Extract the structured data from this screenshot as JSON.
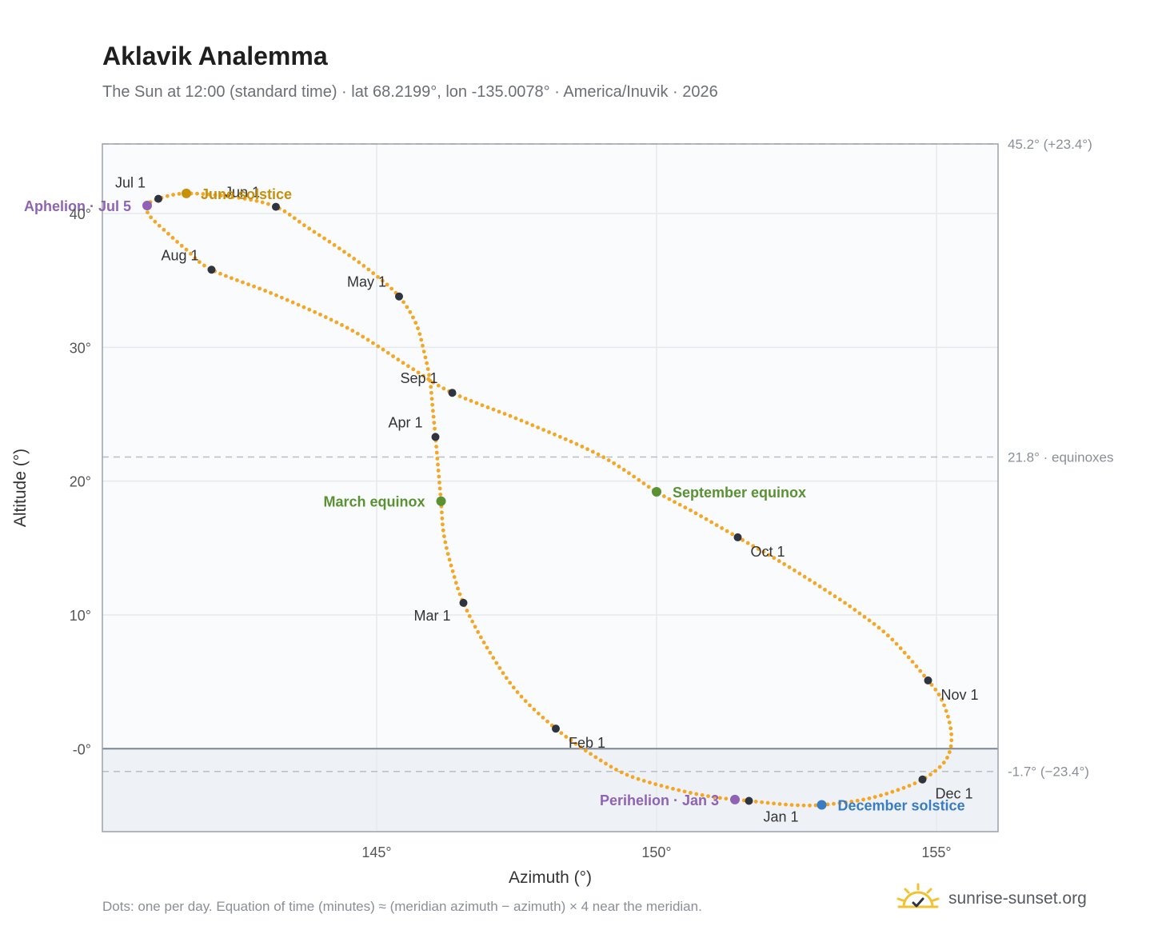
{
  "header": {
    "title": "Aklavik Analemma",
    "subtitle": "The Sun at 12:00 (standard time) · lat 68.2199°, lon -135.0078° · America/Inuvik · 2026"
  },
  "footer": {
    "note": "Dots: one per day. Equation of time (minutes) ≈ (meridian azimuth − azimuth) × 4 near the meridian.",
    "brand": "sunrise-sunset.org"
  },
  "colors": {
    "path": "#f5a623",
    "month_dot": "#2f3540",
    "solstice_june": "#c8900a",
    "solstice_december": "#3a7cc4",
    "equinox": "#5a9132",
    "apsis": "#8e63b5"
  },
  "chart_data": {
    "type": "scatter",
    "title": "Aklavik Analemma",
    "xlabel": "Azimuth (°)",
    "ylabel": "Altitude (°)",
    "xlim": [
      140.1,
      156.1
    ],
    "ylim": [
      -6.2,
      45.2
    ],
    "x_ticks": [
      145,
      150,
      155
    ],
    "x_tick_labels": [
      "145°",
      "150°",
      "155°"
    ],
    "y_ticks": [
      0,
      10,
      20,
      30,
      40
    ],
    "y_tick_labels": [
      "-0°",
      "10°",
      "20°",
      "30°",
      "40°"
    ],
    "grid": true,
    "horizon_altitude": 0,
    "reference_lines": [
      {
        "y": 45.2,
        "label": "45.2° (+23.4°)"
      },
      {
        "y": 21.8,
        "label": "21.8° · equinoxes"
      },
      {
        "y": -1.7,
        "label": "-1.7° (−23.4°)"
      }
    ],
    "month_markers": [
      {
        "label": "Jan 1",
        "x": 151.65,
        "y": -3.9
      },
      {
        "label": "Feb 1",
        "x": 148.2,
        "y": 1.5
      },
      {
        "label": "Mar 1",
        "x": 146.55,
        "y": 10.9
      },
      {
        "label": "Apr 1",
        "x": 146.05,
        "y": 23.3
      },
      {
        "label": "May 1",
        "x": 145.4,
        "y": 33.8
      },
      {
        "label": "Jun 1",
        "x": 143.2,
        "y": 40.5
      },
      {
        "label": "Jul 1",
        "x": 141.1,
        "y": 41.1
      },
      {
        "label": "Aug 1",
        "x": 142.05,
        "y": 35.8
      },
      {
        "label": "Sep 1",
        "x": 146.35,
        "y": 26.6
      },
      {
        "label": "Oct 1",
        "x": 151.45,
        "y": 15.8
      },
      {
        "label": "Nov 1",
        "x": 154.85,
        "y": 5.1
      },
      {
        "label": "Dec 1",
        "x": 154.75,
        "y": -2.3
      }
    ],
    "events": [
      {
        "label": "June solstice",
        "x": 141.6,
        "y": 41.5,
        "color": "#c8900a"
      },
      {
        "label": "December solstice",
        "x": 152.95,
        "y": -4.2,
        "color": "#3a7cc4"
      },
      {
        "label": "March equinox",
        "x": 146.15,
        "y": 18.5,
        "color": "#5a9132"
      },
      {
        "label": "September equinox",
        "x": 150.0,
        "y": 19.2,
        "color": "#5a9132"
      },
      {
        "label": "Aphelion · Jul 5",
        "x": 140.9,
        "y": 40.6,
        "color": "#8e63b5"
      },
      {
        "label": "Perihelion · Jan 3",
        "x": 151.4,
        "y": -3.8,
        "color": "#8e63b5"
      }
    ],
    "path_points": [
      [
        152.95,
        -4.2
      ],
      [
        152.4,
        -4.2
      ],
      [
        151.65,
        -3.9
      ],
      [
        151.0,
        -3.6
      ],
      [
        150.3,
        -3.0
      ],
      [
        149.5,
        -2.0
      ],
      [
        148.9,
        -0.6
      ],
      [
        148.2,
        1.5
      ],
      [
        147.5,
        4.3
      ],
      [
        146.95,
        7.7
      ],
      [
        146.55,
        10.9
      ],
      [
        146.35,
        13.4
      ],
      [
        146.2,
        16.0
      ],
      [
        146.15,
        18.5
      ],
      [
        146.1,
        20.9
      ],
      [
        146.05,
        23.3
      ],
      [
        146.0,
        25.5
      ],
      [
        145.95,
        27.6
      ],
      [
        145.85,
        29.6
      ],
      [
        145.7,
        31.8
      ],
      [
        145.4,
        33.8
      ],
      [
        144.95,
        35.5
      ],
      [
        144.4,
        37.2
      ],
      [
        143.75,
        39.0
      ],
      [
        143.2,
        40.5
      ],
      [
        142.5,
        41.2
      ],
      [
        141.6,
        41.5
      ],
      [
        141.1,
        41.1
      ],
      [
        140.9,
        40.6
      ],
      [
        140.95,
        39.8
      ],
      [
        141.3,
        38.4
      ],
      [
        141.6,
        37.3
      ],
      [
        142.05,
        35.8
      ],
      [
        143.2,
        33.9
      ],
      [
        144.5,
        31.4
      ],
      [
        145.6,
        28.5
      ],
      [
        146.35,
        26.6
      ],
      [
        147.6,
        24.5
      ],
      [
        149.0,
        21.9
      ],
      [
        150.0,
        19.2
      ],
      [
        150.7,
        17.6
      ],
      [
        151.45,
        15.8
      ],
      [
        152.2,
        14.0
      ],
      [
        153.0,
        11.9
      ],
      [
        153.6,
        10.2
      ],
      [
        154.2,
        8.2
      ],
      [
        154.85,
        5.1
      ],
      [
        155.1,
        3.6
      ],
      [
        155.25,
        1.6
      ],
      [
        155.25,
        0.0
      ],
      [
        155.1,
        -1.2
      ],
      [
        154.75,
        -2.3
      ],
      [
        154.3,
        -3.1
      ],
      [
        153.7,
        -3.8
      ],
      [
        152.95,
        -4.2
      ]
    ]
  }
}
